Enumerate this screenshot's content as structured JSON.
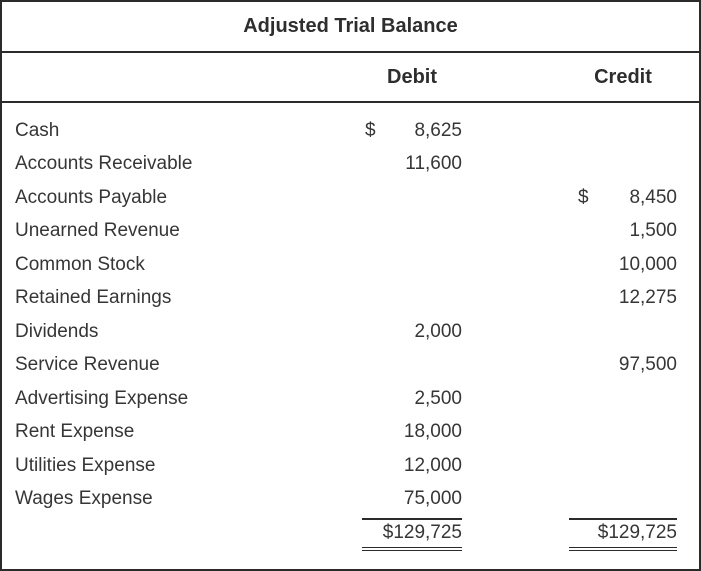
{
  "title": "Adjusted Trial Balance",
  "header": {
    "debit_label": "Debit",
    "credit_label": "Credit"
  },
  "rows": [
    {
      "account": "Cash",
      "debit_symbol": "$",
      "debit": "8,625",
      "credit_symbol": "",
      "credit": ""
    },
    {
      "account": "Accounts Receivable",
      "debit_symbol": "",
      "debit": "11,600",
      "credit_symbol": "",
      "credit": ""
    },
    {
      "account": "Accounts Payable",
      "debit_symbol": "",
      "debit": "",
      "credit_symbol": "$",
      "credit": "8,450"
    },
    {
      "account": "Unearned Revenue",
      "debit_symbol": "",
      "debit": "",
      "credit_symbol": "",
      "credit": "1,500"
    },
    {
      "account": "Common Stock",
      "debit_symbol": "",
      "debit": "",
      "credit_symbol": "",
      "credit": "10,000"
    },
    {
      "account": "Retained Earnings",
      "debit_symbol": "",
      "debit": "",
      "credit_symbol": "",
      "credit": "12,275"
    },
    {
      "account": "Dividends",
      "debit_symbol": "",
      "debit": "2,000",
      "credit_symbol": "",
      "credit": ""
    },
    {
      "account": "Service Revenue",
      "debit_symbol": "",
      "debit": "",
      "credit_symbol": "",
      "credit": "97,500"
    },
    {
      "account": "Advertising Expense",
      "debit_symbol": "",
      "debit": "2,500",
      "credit_symbol": "",
      "credit": ""
    },
    {
      "account": "Rent Expense",
      "debit_symbol": "",
      "debit": "18,000",
      "credit_symbol": "",
      "credit": ""
    },
    {
      "account": "Utilities Expense",
      "debit_symbol": "",
      "debit": "12,000",
      "credit_symbol": "",
      "credit": ""
    },
    {
      "account": "Wages Expense",
      "debit_symbol": "",
      "debit": "75,000",
      "credit_symbol": "",
      "credit": ""
    }
  ],
  "totals": {
    "debit": "$129,725",
    "credit": "$129,725"
  },
  "colors": {
    "background": "#ffffff",
    "text": "#363636",
    "border": "#2b2b2b"
  }
}
